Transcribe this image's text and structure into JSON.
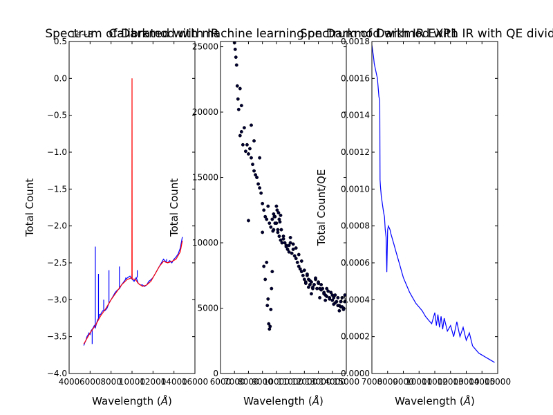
{
  "figure": {
    "background": "#ffffff"
  },
  "chart_data": [
    {
      "type": "line",
      "title": "Spectrum of Darkmod with IR",
      "offset_text": "1e−8",
      "xlabel": "Wavelength ($\\AA$)",
      "xlabel_main": "Wavelength (",
      "xlabel_unit": "Å",
      "xlabel_close": ")",
      "ylabel": "Total Count",
      "xlim": [
        4000,
        16000
      ],
      "ylim": [
        -4.0,
        0.5
      ],
      "xticks": [
        4000,
        6000,
        8000,
        10000,
        12000,
        14000,
        16000
      ],
      "yticks": [
        -4.0,
        -3.5,
        -3.0,
        -2.5,
        -2.0,
        -1.5,
        -1.0,
        -0.5,
        0.0,
        0.5
      ],
      "xtick_labels": [
        "4000",
        "6000",
        "8000",
        "10000",
        "12000",
        "14000",
        "16000"
      ],
      "ytick_labels": [
        "−4.0",
        "−3.5",
        "−3.0",
        "−2.5",
        "−2.0",
        "−1.5",
        "−1.0",
        "−0.5",
        "0.0",
        "0.5"
      ],
      "series": [
        {
          "color": "#0000ff",
          "x": [
            5400,
            5500,
            5600,
            5700,
            5800,
            5900,
            6000,
            6100,
            6200,
            6300,
            6400,
            6500,
            6600,
            6700,
            6800,
            6900,
            7000,
            7200,
            7400,
            7600,
            7800,
            8000,
            8200,
            8400,
            8600,
            8800,
            9000,
            9200,
            9400,
            9600,
            9800,
            10000,
            10200,
            10400,
            10600,
            10800,
            11000,
            11200,
            11400,
            11600,
            11800,
            12000,
            12200,
            12400,
            12600,
            12800,
            13000,
            13200,
            13400,
            13600,
            13800,
            14000,
            14200,
            14400,
            14600,
            14800
          ],
          "y": [
            -3.62,
            -3.58,
            -3.55,
            -3.5,
            -3.48,
            -3.45,
            -3.47,
            -3.42,
            -3.4,
            -3.38,
            -3.35,
            -3.38,
            -3.33,
            -3.28,
            -3.25,
            -3.2,
            -3.2,
            -3.15,
            -3.15,
            -3.12,
            -3.05,
            -3.0,
            -2.95,
            -2.9,
            -2.87,
            -2.85,
            -2.8,
            -2.76,
            -2.72,
            -2.7,
            -2.68,
            -2.72,
            -2.75,
            -2.7,
            -2.78,
            -2.8,
            -2.8,
            -2.82,
            -2.8,
            -2.75,
            -2.73,
            -2.7,
            -2.65,
            -2.6,
            -2.55,
            -2.5,
            -2.45,
            -2.48,
            -2.5,
            -2.47,
            -2.5,
            -2.45,
            -2.42,
            -2.38,
            -2.3,
            -2.15
          ],
          "spikes": [
            [
              6500,
              -2.28
            ],
            [
              6200,
              -3.6
            ],
            [
              6800,
              -2.65
            ],
            [
              7300,
              -3.0
            ],
            [
              7800,
              -2.6
            ],
            [
              8800,
              -2.55
            ],
            [
              9400,
              -2.7
            ],
            [
              10000,
              -2.65
            ],
            [
              10500,
              -2.6
            ],
            [
              13300,
              -2.45
            ],
            [
              14600,
              -2.3
            ]
          ]
        },
        {
          "color": "#ff0000",
          "x": [
            5400,
            5600,
            6000,
            6500,
            7000,
            7500,
            8000,
            8500,
            9000,
            9500,
            9990,
            10000,
            10010,
            10300,
            10600,
            11000,
            11400,
            11800,
            12200,
            12600,
            13000,
            13400,
            13800,
            14200,
            14600,
            14800
          ],
          "y": [
            -3.6,
            -3.55,
            -3.45,
            -3.35,
            -3.22,
            -3.12,
            -3.0,
            -2.9,
            -2.8,
            -2.73,
            -2.7,
            0.0,
            -2.72,
            -2.72,
            -2.78,
            -2.82,
            -2.8,
            -2.75,
            -2.65,
            -2.55,
            -2.48,
            -2.5,
            -2.48,
            -2.45,
            -2.35,
            -2.2
          ]
        }
      ]
    },
    {
      "type": "scatter",
      "title": "Calibrated with machine learning on Darkmod with IR EXP1",
      "xlabel": "Wavelength ($\\AA$)",
      "xlabel_main": "Wavelength (",
      "xlabel_unit": "Å",
      "xlabel_close": ")",
      "ylabel": "Total Count",
      "xlim": [
        6000,
        15000
      ],
      "ylim": [
        0,
        25400
      ],
      "xticks": [
        6000,
        7000,
        8000,
        9000,
        10000,
        11000,
        12000,
        13000,
        14000,
        15000
      ],
      "yticks": [
        0,
        5000,
        10000,
        15000,
        20000,
        25000
      ],
      "xtick_labels": [
        "6000",
        "7000",
        "8000",
        "9000",
        "10000",
        "11000",
        "12000",
        "13000",
        "14000",
        "15000"
      ],
      "ytick_labels": [
        "0",
        "5000",
        "10000",
        "15000",
        "20000",
        "25000"
      ],
      "series": [
        {
          "color": "#000033",
          "x": [
            7000,
            7050,
            7100,
            7150,
            7200,
            7250,
            7300,
            7400,
            7500,
            7600,
            7700,
            7800,
            7900,
            8000,
            8100,
            8200,
            8300,
            8400,
            8500,
            8600,
            8700,
            8800,
            8900,
            9000,
            9100,
            9200,
            9300,
            9400,
            9500,
            9600,
            9700,
            9800,
            9900,
            10000,
            10100,
            10200,
            10300,
            10400,
            10500,
            10600,
            10700,
            10800,
            10900,
            11000,
            11100,
            11200,
            11300,
            11400,
            11500,
            11600,
            11700,
            11800,
            11900,
            12000,
            12100,
            12200,
            12300,
            12400,
            12500,
            12600,
            12700,
            12800,
            12900,
            13000,
            13100,
            13200,
            13300,
            13400,
            13500,
            13600,
            13700,
            13800,
            13900,
            14000,
            14100,
            14200,
            14300,
            14400,
            14500,
            14600,
            14700,
            14800,
            14900,
            7400,
            7500,
            8000,
            8200,
            8400,
            8800,
            9000,
            9100,
            9200,
            9300,
            9350,
            9400,
            9450,
            9500,
            9550,
            9600,
            9650,
            9700,
            9750,
            9800,
            9850,
            9900,
            10000,
            10050,
            10100,
            10150,
            10200,
            10250,
            10300,
            10350,
            10500,
            10700,
            10900,
            11000,
            11200,
            11400,
            11600,
            11800,
            12000,
            12200,
            12400,
            12600,
            12800,
            13000,
            13200,
            13400,
            13600,
            13800,
            14000,
            14200,
            14400,
            14600,
            14800,
            12100,
            12300,
            12500,
            13100,
            13500,
            14100,
            14500,
            14700,
            14900
          ],
          "y": [
            25300,
            24800,
            24200,
            23600,
            22000,
            21000,
            20200,
            18200,
            18500,
            17500,
            18800,
            17000,
            17500,
            16800,
            17200,
            16500,
            16000,
            15500,
            15200,
            15000,
            14500,
            14200,
            13800,
            13000,
            12500,
            12000,
            11800,
            12800,
            11500,
            11200,
            11800,
            11000,
            12000,
            11500,
            10800,
            10500,
            10200,
            10000,
            10500,
            10000,
            9800,
            9500,
            9800,
            10000,
            9200,
            9500,
            9000,
            8800,
            8500,
            8200,
            8000,
            7800,
            7500,
            7200,
            7000,
            7500,
            7200,
            6800,
            7000,
            6500,
            6800,
            7200,
            6500,
            7000,
            6500,
            6800,
            6500,
            6200,
            6000,
            6500,
            6300,
            5800,
            6200,
            6000,
            5800,
            6000,
            5500,
            5800,
            5200,
            5500,
            5800,
            5000,
            5500,
            21800,
            20500,
            11700,
            19000,
            17800,
            16500,
            10800,
            8200,
            7200,
            8500,
            5200,
            5700,
            3800,
            3400,
            3600,
            4900,
            6500,
            7800,
            10900,
            12200,
            12000,
            11500,
            12800,
            12500,
            11000,
            12300,
            11800,
            11600,
            12100,
            11000,
            10300,
            9700,
            9300,
            10400,
            9900,
            9600,
            9100,
            8600,
            7900,
            7600,
            7100,
            6600,
            7300,
            6900,
            6400,
            6100,
            5900,
            5700,
            5600,
            5400,
            5200,
            5100,
            4900,
            6900,
            6600,
            6100,
            5800,
            5600,
            5300,
            4800,
            5100,
            6000
          ]
        }
      ]
    },
    {
      "type": "line",
      "title": "Spectrum of Darkmod with IR with QE divided",
      "xlabel": "Wavelength ($\\AA$)",
      "xlabel_main": "Wavelength (",
      "xlabel_unit": "Å",
      "xlabel_close": ")",
      "ylabel": "Total Count/QE",
      "xlim": [
        7000,
        15000
      ],
      "ylim": [
        0,
        0.0018
      ],
      "xticks": [
        7000,
        8000,
        9000,
        10000,
        11000,
        12000,
        13000,
        14000,
        15000
      ],
      "yticks": [
        0,
        0.0002,
        0.0004,
        0.0006,
        0.0008,
        0.001,
        0.0012,
        0.0014,
        0.0016,
        0.0018
      ],
      "xtick_labels": [
        "7000",
        "8000",
        "9000",
        "10000",
        "11000",
        "12000",
        "13000",
        "14000",
        "15000"
      ],
      "ytick_labels": [
        "0.0000",
        "0.0002",
        "0.0004",
        "0.0006",
        "0.0008",
        "0.0010",
        "0.0012",
        "0.0014",
        "0.0016",
        "0.0018"
      ],
      "series": [
        {
          "color": "#0000ff",
          "x": [
            7000,
            7050,
            7100,
            7150,
            7200,
            7250,
            7300,
            7350,
            7400,
            7450,
            7500,
            7520,
            7540,
            7560,
            7580,
            7600,
            7650,
            7700,
            7750,
            7800,
            7850,
            7900,
            7950,
            8000,
            8050,
            8100,
            8150,
            8200,
            8300,
            8400,
            8500,
            8600,
            8700,
            8800,
            8900,
            9000,
            9200,
            9400,
            9600,
            9800,
            10000,
            10200,
            10400,
            10600,
            10800,
            11000,
            11100,
            11200,
            11300,
            11400,
            11500,
            11600,
            11800,
            12000,
            12200,
            12400,
            12600,
            12800,
            13000,
            13200,
            13400,
            13600,
            13800,
            14000,
            14200,
            14400,
            14600,
            14800
          ],
          "y": [
            0.00178,
            0.00175,
            0.00172,
            0.00168,
            0.00166,
            0.00164,
            0.00162,
            0.0016,
            0.00155,
            0.0015,
            0.00148,
            0.00105,
            0.00102,
            0.001,
            0.00098,
            0.00096,
            0.00093,
            0.0009,
            0.00087,
            0.00085,
            0.00078,
            0.00074,
            0.00055,
            0.00078,
            0.0008,
            0.00079,
            0.00078,
            0.00076,
            0.00073,
            0.0007,
            0.00067,
            0.00064,
            0.00061,
            0.00058,
            0.00055,
            0.00052,
            0.00048,
            0.00044,
            0.00041,
            0.00038,
            0.00036,
            0.00034,
            0.00031,
            0.00029,
            0.00027,
            0.00033,
            0.00026,
            0.00032,
            0.00025,
            0.00031,
            0.00024,
            0.0003,
            0.00023,
            0.00026,
            0.0002,
            0.00028,
            0.0002,
            0.00025,
            0.00018,
            0.00022,
            0.00015,
            0.00013,
            0.00011,
            0.0001,
            9e-05,
            8e-05,
            7e-05,
            6e-05
          ]
        }
      ]
    }
  ]
}
